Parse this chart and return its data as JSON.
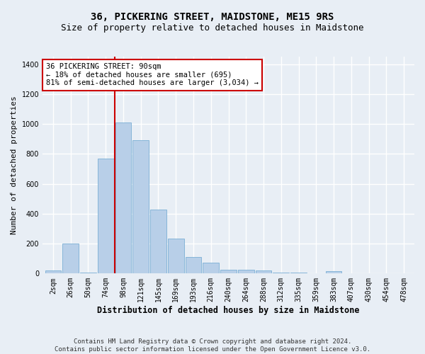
{
  "title": "36, PICKERING STREET, MAIDSTONE, ME15 9RS",
  "subtitle": "Size of property relative to detached houses in Maidstone",
  "xlabel": "Distribution of detached houses by size in Maidstone",
  "ylabel": "Number of detached properties",
  "categories": [
    "2sqm",
    "26sqm",
    "50sqm",
    "74sqm",
    "98sqm",
    "121sqm",
    "145sqm",
    "169sqm",
    "193sqm",
    "216sqm",
    "240sqm",
    "264sqm",
    "288sqm",
    "312sqm",
    "335sqm",
    "359sqm",
    "383sqm",
    "407sqm",
    "430sqm",
    "454sqm",
    "478sqm"
  ],
  "values": [
    20,
    200,
    5,
    770,
    1010,
    890,
    425,
    235,
    110,
    70,
    25,
    25,
    20,
    8,
    5,
    0,
    15,
    0,
    0,
    0,
    0
  ],
  "bar_color": "#b8cfe8",
  "bar_edge_color": "#7aafd4",
  "red_line_index": 4,
  "annotation_line1": "36 PICKERING STREET: 90sqm",
  "annotation_line2": "← 18% of detached houses are smaller (695)",
  "annotation_line3": "81% of semi-detached houses are larger (3,034) →",
  "annotation_box_color": "#ffffff",
  "annotation_box_edge_color": "#cc0000",
  "red_line_color": "#cc0000",
  "ylim": [
    0,
    1450
  ],
  "yticks": [
    0,
    200,
    400,
    600,
    800,
    1000,
    1200,
    1400
  ],
  "footer_line1": "Contains HM Land Registry data © Crown copyright and database right 2024.",
  "footer_line2": "Contains public sector information licensed under the Open Government Licence v3.0.",
  "background_color": "#e8eef5",
  "plot_background_color": "#e8eef5",
  "grid_color": "#ffffff",
  "title_fontsize": 10,
  "subtitle_fontsize": 9,
  "xlabel_fontsize": 8.5,
  "ylabel_fontsize": 8,
  "tick_fontsize": 7,
  "annotation_fontsize": 7.5,
  "footer_fontsize": 6.5
}
